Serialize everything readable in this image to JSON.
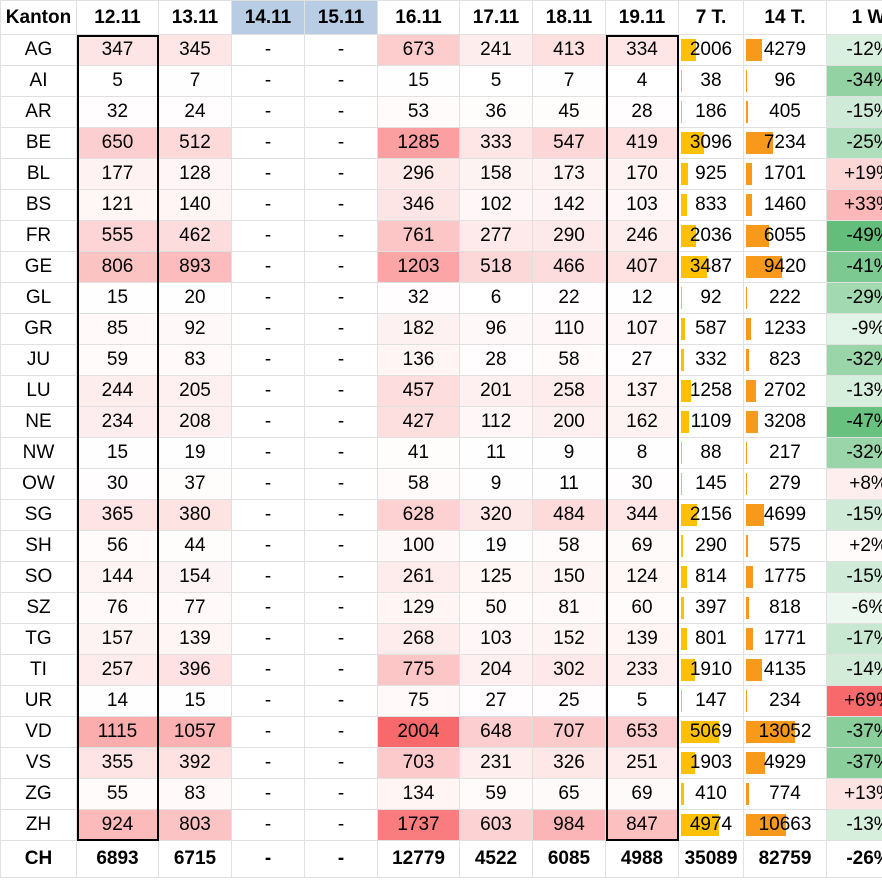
{
  "chart_data": {
    "type": "table",
    "columns": [
      "Kanton",
      "12.11",
      "13.11",
      "14.11",
      "15.11",
      "16.11",
      "17.11",
      "18.11",
      "19.11",
      "7 T.",
      "14 T.",
      "1 W"
    ],
    "rows": [
      [
        "AG",
        "347",
        "345",
        "-",
        "-",
        "673",
        "241",
        "413",
        "334",
        "2006",
        "4279",
        "-12%"
      ],
      [
        "AI",
        "5",
        "7",
        "-",
        "-",
        "15",
        "5",
        "7",
        "4",
        "38",
        "96",
        "-34%"
      ],
      [
        "AR",
        "32",
        "24",
        "-",
        "-",
        "53",
        "36",
        "45",
        "28",
        "186",
        "405",
        "-15%"
      ],
      [
        "BE",
        "650",
        "512",
        "-",
        "-",
        "1285",
        "333",
        "547",
        "419",
        "3096",
        "7234",
        "-25%"
      ],
      [
        "BL",
        "177",
        "128",
        "-",
        "-",
        "296",
        "158",
        "173",
        "170",
        "925",
        "1701",
        "+19%"
      ],
      [
        "BS",
        "121",
        "140",
        "-",
        "-",
        "346",
        "102",
        "142",
        "103",
        "833",
        "1460",
        "+33%"
      ],
      [
        "FR",
        "555",
        "462",
        "-",
        "-",
        "761",
        "277",
        "290",
        "246",
        "2036",
        "6055",
        "-49%"
      ],
      [
        "GE",
        "806",
        "893",
        "-",
        "-",
        "1203",
        "518",
        "466",
        "407",
        "3487",
        "9420",
        "-41%"
      ],
      [
        "GL",
        "15",
        "20",
        "-",
        "-",
        "32",
        "6",
        "22",
        "12",
        "92",
        "222",
        "-29%"
      ],
      [
        "GR",
        "85",
        "92",
        "-",
        "-",
        "182",
        "96",
        "110",
        "107",
        "587",
        "1233",
        "-9%"
      ],
      [
        "JU",
        "59",
        "83",
        "-",
        "-",
        "136",
        "28",
        "58",
        "27",
        "332",
        "823",
        "-32%"
      ],
      [
        "LU",
        "244",
        "205",
        "-",
        "-",
        "457",
        "201",
        "258",
        "137",
        "1258",
        "2702",
        "-13%"
      ],
      [
        "NE",
        "234",
        "208",
        "-",
        "-",
        "427",
        "112",
        "200",
        "162",
        "1109",
        "3208",
        "-47%"
      ],
      [
        "NW",
        "15",
        "19",
        "-",
        "-",
        "41",
        "11",
        "9",
        "8",
        "88",
        "217",
        "-32%"
      ],
      [
        "OW",
        "30",
        "37",
        "-",
        "-",
        "58",
        "9",
        "11",
        "30",
        "145",
        "279",
        "+8%"
      ],
      [
        "SG",
        "365",
        "380",
        "-",
        "-",
        "628",
        "320",
        "484",
        "344",
        "2156",
        "4699",
        "-15%"
      ],
      [
        "SH",
        "56",
        "44",
        "-",
        "-",
        "100",
        "19",
        "58",
        "69",
        "290",
        "575",
        "+2%"
      ],
      [
        "SO",
        "144",
        "154",
        "-",
        "-",
        "261",
        "125",
        "150",
        "124",
        "814",
        "1775",
        "-15%"
      ],
      [
        "SZ",
        "76",
        "77",
        "-",
        "-",
        "129",
        "50",
        "81",
        "60",
        "397",
        "818",
        "-6%"
      ],
      [
        "TG",
        "157",
        "139",
        "-",
        "-",
        "268",
        "103",
        "152",
        "139",
        "801",
        "1771",
        "-17%"
      ],
      [
        "TI",
        "257",
        "396",
        "-",
        "-",
        "775",
        "204",
        "302",
        "233",
        "1910",
        "4135",
        "-14%"
      ],
      [
        "UR",
        "14",
        "15",
        "-",
        "-",
        "75",
        "27",
        "25",
        "5",
        "147",
        "234",
        "+69%"
      ],
      [
        "VD",
        "1115",
        "1057",
        "-",
        "-",
        "2004",
        "648",
        "707",
        "653",
        "5069",
        "13052",
        "-37%"
      ],
      [
        "VS",
        "355",
        "392",
        "-",
        "-",
        "703",
        "231",
        "326",
        "251",
        "1903",
        "4929",
        "-37%"
      ],
      [
        "ZG",
        "55",
        "83",
        "-",
        "-",
        "134",
        "59",
        "65",
        "69",
        "410",
        "774",
        "+13%"
      ],
      [
        "ZH",
        "924",
        "803",
        "-",
        "-",
        "1737",
        "603",
        "984",
        "847",
        "4974",
        "10663",
        "-13%"
      ]
    ],
    "total": [
      "CH",
      "6893",
      "6715",
      "-",
      "-",
      "12779",
      "4522",
      "6085",
      "4988",
      "35089",
      "82759",
      "-26%"
    ]
  },
  "colors": {
    "heat_low": "#ffffff",
    "heat_high": "#f8696b",
    "bar_7t": "#ffc000",
    "bar_14t": "#f79a1c",
    "change_negative": "#63be7b",
    "change_positive": "#f8696b",
    "header_gray": "#b8cce4"
  }
}
